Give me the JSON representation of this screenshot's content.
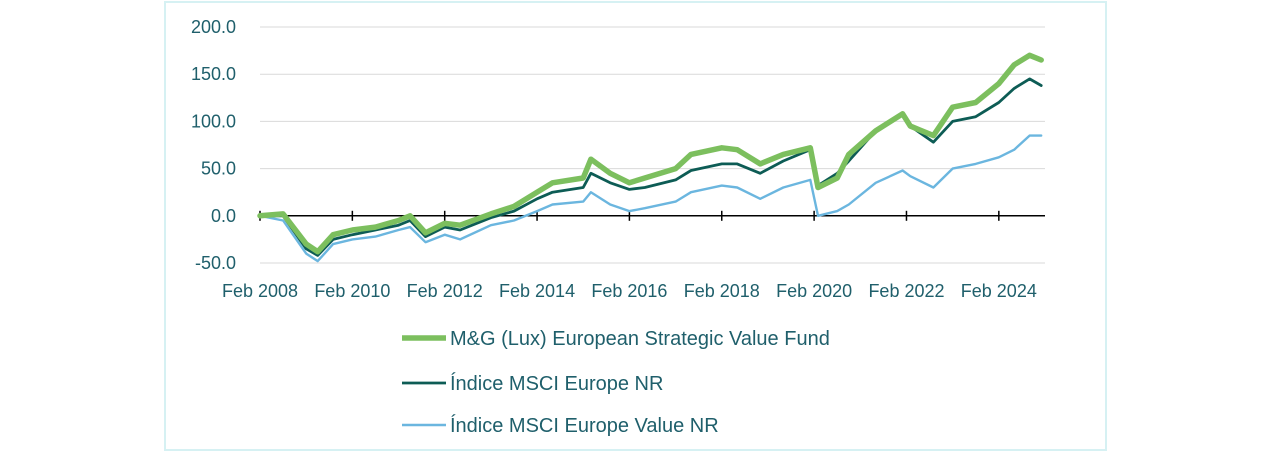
{
  "chart_data": {
    "type": "line",
    "title": "",
    "xlabel": "",
    "ylabel": "",
    "ylim": [
      -50,
      200
    ],
    "yticks": [
      "200.0",
      "150.0",
      "100.0",
      "50.0",
      "0.0",
      "-50.0"
    ],
    "xticks": [
      "Feb 2008",
      "Feb 2010",
      "Feb 2012",
      "Feb 2014",
      "Feb 2016",
      "Feb 2018",
      "Feb 2020",
      "Feb 2022",
      "Feb 2024"
    ],
    "grid": "horizontal",
    "legend_position": "bottom",
    "series": [
      {
        "name": "M&G (Lux) European Strategic Value Fund",
        "color": "#7cbf5e",
        "points": [
          [
            "2008-02",
            0
          ],
          [
            "2008-08",
            2
          ],
          [
            "2009-02",
            -30
          ],
          [
            "2009-05",
            -38
          ],
          [
            "2009-09",
            -20
          ],
          [
            "2010-02",
            -15
          ],
          [
            "2010-08",
            -12
          ],
          [
            "2011-02",
            -5
          ],
          [
            "2011-05",
            0
          ],
          [
            "2011-09",
            -18
          ],
          [
            "2012-02",
            -8
          ],
          [
            "2012-06",
            -10
          ],
          [
            "2013-02",
            2
          ],
          [
            "2013-08",
            10
          ],
          [
            "2014-02",
            25
          ],
          [
            "2014-06",
            35
          ],
          [
            "2015-02",
            40
          ],
          [
            "2015-04",
            60
          ],
          [
            "2015-09",
            45
          ],
          [
            "2016-02",
            35
          ],
          [
            "2016-06",
            40
          ],
          [
            "2017-02",
            50
          ],
          [
            "2017-06",
            65
          ],
          [
            "2018-02",
            72
          ],
          [
            "2018-06",
            70
          ],
          [
            "2018-12",
            55
          ],
          [
            "2019-06",
            65
          ],
          [
            "2020-01",
            72
          ],
          [
            "2020-03",
            30
          ],
          [
            "2020-08",
            40
          ],
          [
            "2020-11",
            65
          ],
          [
            "2021-06",
            90
          ],
          [
            "2022-01",
            108
          ],
          [
            "2022-03",
            95
          ],
          [
            "2022-09",
            85
          ],
          [
            "2023-02",
            115
          ],
          [
            "2023-08",
            120
          ],
          [
            "2024-02",
            140
          ],
          [
            "2024-06",
            160
          ],
          [
            "2024-10",
            170
          ],
          [
            "2025-01",
            165
          ]
        ]
      },
      {
        "name": "Índice MSCI Europe NR",
        "color": "#0d5c55",
        "points": [
          [
            "2008-02",
            0
          ],
          [
            "2008-08",
            0
          ],
          [
            "2009-02",
            -35
          ],
          [
            "2009-05",
            -42
          ],
          [
            "2009-09",
            -25
          ],
          [
            "2010-02",
            -20
          ],
          [
            "2010-08",
            -15
          ],
          [
            "2011-02",
            -10
          ],
          [
            "2011-05",
            -5
          ],
          [
            "2011-09",
            -22
          ],
          [
            "2012-02",
            -12
          ],
          [
            "2012-06",
            -15
          ],
          [
            "2013-02",
            -2
          ],
          [
            "2013-08",
            5
          ],
          [
            "2014-02",
            18
          ],
          [
            "2014-06",
            25
          ],
          [
            "2015-02",
            30
          ],
          [
            "2015-04",
            45
          ],
          [
            "2015-09",
            35
          ],
          [
            "2016-02",
            28
          ],
          [
            "2016-06",
            30
          ],
          [
            "2017-02",
            38
          ],
          [
            "2017-06",
            48
          ],
          [
            "2018-02",
            55
          ],
          [
            "2018-06",
            55
          ],
          [
            "2018-12",
            45
          ],
          [
            "2019-06",
            58
          ],
          [
            "2020-01",
            70
          ],
          [
            "2020-03",
            32
          ],
          [
            "2020-08",
            45
          ],
          [
            "2020-11",
            58
          ],
          [
            "2021-06",
            90
          ],
          [
            "2022-01",
            108
          ],
          [
            "2022-03",
            95
          ],
          [
            "2022-09",
            78
          ],
          [
            "2023-02",
            100
          ],
          [
            "2023-08",
            105
          ],
          [
            "2024-02",
            120
          ],
          [
            "2024-06",
            135
          ],
          [
            "2024-10",
            145
          ],
          [
            "2025-01",
            138
          ]
        ]
      },
      {
        "name": "Índice MSCI Europe Value NR",
        "color": "#6bb6df",
        "points": [
          [
            "2008-02",
            0
          ],
          [
            "2008-08",
            -5
          ],
          [
            "2009-02",
            -40
          ],
          [
            "2009-05",
            -48
          ],
          [
            "2009-09",
            -30
          ],
          [
            "2010-02",
            -25
          ],
          [
            "2010-08",
            -22
          ],
          [
            "2011-02",
            -15
          ],
          [
            "2011-05",
            -12
          ],
          [
            "2011-09",
            -28
          ],
          [
            "2012-02",
            -20
          ],
          [
            "2012-06",
            -25
          ],
          [
            "2013-02",
            -10
          ],
          [
            "2013-08",
            -5
          ],
          [
            "2014-02",
            5
          ],
          [
            "2014-06",
            12
          ],
          [
            "2015-02",
            15
          ],
          [
            "2015-04",
            25
          ],
          [
            "2015-09",
            12
          ],
          [
            "2016-02",
            5
          ],
          [
            "2016-06",
            8
          ],
          [
            "2017-02",
            15
          ],
          [
            "2017-06",
            25
          ],
          [
            "2018-02",
            32
          ],
          [
            "2018-06",
            30
          ],
          [
            "2018-12",
            18
          ],
          [
            "2019-06",
            30
          ],
          [
            "2020-01",
            38
          ],
          [
            "2020-03",
            0
          ],
          [
            "2020-08",
            5
          ],
          [
            "2020-11",
            12
          ],
          [
            "2021-06",
            35
          ],
          [
            "2022-01",
            48
          ],
          [
            "2022-03",
            42
          ],
          [
            "2022-09",
            30
          ],
          [
            "2023-02",
            50
          ],
          [
            "2023-08",
            55
          ],
          [
            "2024-02",
            62
          ],
          [
            "2024-06",
            70
          ],
          [
            "2024-10",
            85
          ],
          [
            "2025-01",
            85
          ]
        ]
      }
    ]
  }
}
